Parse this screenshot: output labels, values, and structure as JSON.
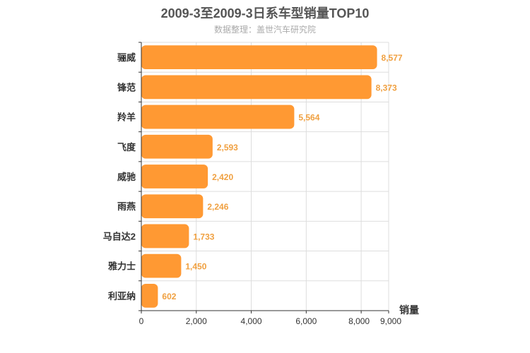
{
  "chart_data": {
    "type": "bar",
    "orientation": "horizontal",
    "title": "2009-3至2009-3日系车型销量TOP10",
    "subtitle": "数据整理：盖世汽车研究院",
    "categories": [
      "骊威",
      "锋范",
      "羚羊",
      "飞度",
      "威驰",
      "雨燕",
      "马自达2",
      "雅力士",
      "利亚纳"
    ],
    "values": [
      8577,
      8373,
      5564,
      2593,
      2420,
      2246,
      1733,
      1450,
      602
    ],
    "value_labels": [
      "8,577",
      "8,373",
      "5,564",
      "2,593",
      "2,420",
      "2,246",
      "1,733",
      "1,450",
      "602"
    ],
    "xlabel": "销量",
    "ylabel": "",
    "xlim": [
      0,
      9000
    ],
    "xticks": [
      0,
      2000,
      4000,
      6000,
      8000,
      9000
    ],
    "xtick_labels": [
      "0",
      "2,000",
      "4,000",
      "6,000",
      "8,000",
      "9,000"
    ],
    "grid": true,
    "bar_color": "#ff9933",
    "label_color": "#f0a040"
  }
}
